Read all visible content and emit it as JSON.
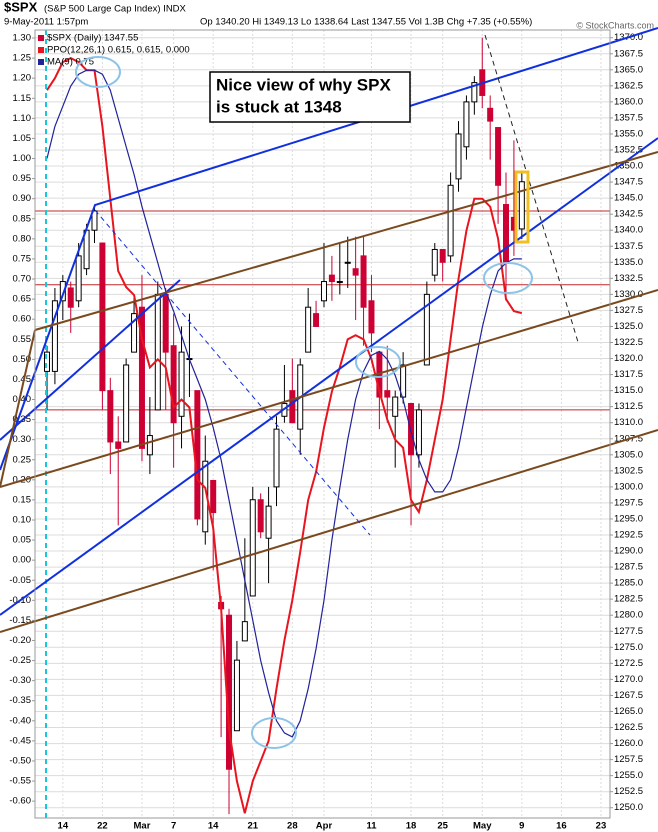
{
  "chart_data": {
    "type": "candlestick",
    "title": "$SPX",
    "subtitle": "(S&P 500 Large Cap Index) INDX",
    "date": "9-May-2011 1:57pm",
    "quote": "Op 1340.20  Hi 1349.13  Lo 1338.64  Last 1347.55  Vol 1.3B  Chg +7.35 (+0.55%)",
    "credit": "© StockCharts.com",
    "annotation": [
      "Nice view of why SPX",
      "is stuck at 1348"
    ],
    "categories": [
      null,
      null,
      "14",
      null,
      null,
      null,
      null,
      "22",
      null,
      null,
      null,
      null,
      "Mar",
      null,
      null,
      null,
      "7",
      null,
      null,
      null,
      null,
      "14",
      null,
      null,
      null,
      null,
      "21",
      null,
      null,
      null,
      null,
      "28",
      null,
      null,
      null,
      "Apr",
      null,
      null,
      null,
      null,
      null,
      "11",
      null,
      null,
      null,
      null,
      "18",
      null,
      null,
      null,
      "25",
      null,
      null,
      null,
      null,
      "May",
      null,
      null,
      null,
      null,
      "9",
      null,
      null,
      null,
      null,
      "16",
      null,
      null,
      null,
      null,
      "23"
    ],
    "candles": {
      "name": "$SPX (Daily) 1347.55",
      "up_color": "#000000",
      "down_color": "#cc0033",
      "open": [
        1318,
        1318,
        1329,
        1331,
        1329,
        1334,
        1340,
        1338,
        1315,
        1307,
        1307,
        1321,
        1328,
        1305,
        1312,
        1330,
        1322,
        1311,
        1320,
        1315,
        1293,
        1301,
        1282,
        1280,
        1262,
        1276,
        1283,
        1298,
        1292,
        1300,
        1311,
        1315,
        1309,
        1321,
        1327,
        1329,
        1333,
        1332,
        1335,
        1334,
        1336,
        1329,
        1321,
        1315,
        1311,
        1314,
        1313,
        1305,
        1319,
        1333,
        1337,
        1336,
        1348,
        1353,
        1360,
        1365,
        1359,
        1356,
        1344,
        1342,
        1340.2,
        null,
        null,
        null,
        null,
        null,
        null,
        null,
        null,
        null,
        null
      ],
      "high": [
        1322,
        1331,
        1333,
        1332,
        1338,
        1341,
        1344,
        1338,
        1317,
        1311,
        1320,
        1330,
        1333,
        1314,
        1332,
        1331,
        1327,
        1325,
        1327,
        1315,
        1308,
        1301,
        1283,
        1281,
        1276,
        1292,
        1300,
        1299,
        1300,
        1311,
        1319,
        1320,
        1320,
        1331,
        1329,
        1338,
        1336,
        1338,
        1339,
        1339,
        1339,
        1333,
        1321,
        1322,
        1315,
        1321,
        1313,
        1313,
        1332,
        1338,
        1337,
        1349,
        1357,
        1361,
        1364,
        1370,
        1361,
        1356,
        1349,
        1354,
        1349.13,
        null,
        null,
        null,
        null,
        null,
        null,
        null,
        null,
        null,
        null
      ],
      "low": [
        1312,
        1316,
        1326,
        1324,
        1328,
        1333,
        1338,
        1312,
        1302,
        1294,
        1307,
        1321,
        1304,
        1302,
        1312,
        1312,
        1303,
        1306,
        1314,
        1294,
        1291,
        1287,
        1261,
        1249,
        1262,
        1276,
        1283,
        1292,
        1285,
        1297,
        1310,
        1310,
        1305,
        1321,
        1325,
        1328,
        1329,
        1330,
        1331,
        1326,
        1322,
        1321,
        1309,
        1310,
        1303,
        1313,
        1294,
        1303,
        1319,
        1332,
        1332,
        1335,
        1346,
        1351,
        1358,
        1359,
        1351,
        1341,
        1329,
        1336,
        1338.64,
        null,
        null,
        null,
        null,
        null,
        null,
        null,
        null,
        null,
        null
      ],
      "close": [
        1321,
        1329,
        1332,
        1328,
        1336,
        1340,
        1343,
        1315,
        1307,
        1306,
        1319,
        1327,
        1306,
        1308,
        1330,
        1321,
        1310,
        1321,
        1320,
        1295,
        1304,
        1296,
        1281,
        1256,
        1273,
        1279,
        1298,
        1293,
        1297,
        1309,
        1313,
        1310,
        1319,
        1328,
        1325,
        1332,
        1332,
        1332,
        1335,
        1333,
        1328,
        1324,
        1314,
        1314,
        1314,
        1319,
        1305,
        1312,
        1330,
        1337,
        1335,
        1347,
        1355,
        1360,
        1363,
        1361,
        1357,
        1347,
        1335,
        1340,
        1347.55,
        null,
        null,
        null,
        null,
        null,
        null,
        null,
        null,
        null,
        null
      ]
    },
    "series": [
      {
        "name": "PPO(12,26,1) 0.615, 0.615, 0.000",
        "color": "#e8141e",
        "axis": "y2",
        "values": [
          1.17,
          1.2,
          1.24,
          1.25,
          1.24,
          1.22,
          1.22,
          1.08,
          0.9,
          0.72,
          0.68,
          0.66,
          0.55,
          0.48,
          0.5,
          0.48,
          0.38,
          0.4,
          0.38,
          0.2,
          0.18,
          0.08,
          -0.12,
          -0.42,
          -0.55,
          -0.63,
          -0.55,
          -0.5,
          -0.45,
          -0.32,
          -0.2,
          -0.1,
          0.02,
          0.15,
          0.22,
          0.33,
          0.42,
          0.48,
          0.55,
          0.56,
          0.55,
          0.5,
          0.42,
          0.35,
          0.3,
          0.28,
          0.15,
          0.12,
          0.2,
          0.3,
          0.4,
          0.55,
          0.7,
          0.82,
          0.9,
          0.9,
          0.88,
          0.8,
          0.65,
          0.62,
          0.615,
          null,
          null,
          null,
          null,
          null,
          null,
          null,
          null,
          null,
          null
        ]
      },
      {
        "name": "MA(9) 0.75",
        "color": "#22229a",
        "axis": "y2",
        "values": [
          1.0,
          1.08,
          1.13,
          1.18,
          1.21,
          1.22,
          1.22,
          1.21,
          1.17,
          1.1,
          1.03,
          0.96,
          0.88,
          0.81,
          0.74,
          0.67,
          0.62,
          0.56,
          0.5,
          0.45,
          0.4,
          0.33,
          0.25,
          0.15,
          0.05,
          -0.05,
          -0.15,
          -0.25,
          -0.33,
          -0.4,
          -0.43,
          -0.44,
          -0.4,
          -0.32,
          -0.22,
          -0.1,
          0.05,
          0.18,
          0.3,
          0.4,
          0.47,
          0.51,
          0.52,
          0.5,
          0.46,
          0.4,
          0.32,
          0.25,
          0.2,
          0.17,
          0.17,
          0.2,
          0.28,
          0.38,
          0.48,
          0.58,
          0.66,
          0.72,
          0.74,
          0.75,
          0.75,
          null,
          null,
          null,
          null,
          null,
          null,
          null,
          null,
          null,
          null
        ]
      }
    ],
    "hlines": {
      "values": [
        1343,
        1331.5,
        1312
      ],
      "color": "#c0282d"
    },
    "ylim": [
      1248.4,
      1371.2
    ],
    "yticks": [
      {
        "value": 1250,
        "label": "1250.0"
      },
      1252.5,
      {
        "value": 1255,
        "label": "1255.0"
      },
      1257.5,
      {
        "value": 1260,
        "label": "1260.0"
      },
      1262.5,
      {
        "value": 1265,
        "label": "1265.0"
      },
      1267.5,
      {
        "value": 1270,
        "label": "1270.0"
      },
      1272.5,
      {
        "value": 1275,
        "label": "1275.0"
      },
      1277.5,
      {
        "value": 1280,
        "label": "1280.0"
      },
      1282.5,
      {
        "value": 1285,
        "label": "1285.0"
      },
      1287.5,
      {
        "value": 1290,
        "label": "1290.0"
      },
      1292.5,
      {
        "value": 1295,
        "label": "1295.0"
      },
      1297.5,
      {
        "value": 1300,
        "label": "1300.0"
      },
      1302.5,
      {
        "value": 1305,
        "label": "1305.0"
      },
      1307.5,
      {
        "value": 1310,
        "label": "1310.0"
      },
      1312.5,
      {
        "value": 1315,
        "label": "1315.0"
      },
      1317.5,
      {
        "value": 1320,
        "label": "1320.0"
      },
      1322.5,
      {
        "value": 1325,
        "label": "1325.0"
      },
      1327.5,
      {
        "value": 1330,
        "label": "1330.0"
      },
      1332.5,
      {
        "value": 1335,
        "label": "1335.0"
      },
      1337.5,
      {
        "value": 1340,
        "label": "1340.0"
      },
      1342.5,
      {
        "value": 1345,
        "label": "1345.0"
      },
      1347.5,
      {
        "value": 1350,
        "label": "1350.0"
      },
      1352.5,
      {
        "value": 1355,
        "label": "1355.0"
      },
      1357.5,
      {
        "value": 1360,
        "label": "1360.0"
      },
      1362.5,
      {
        "value": 1365,
        "label": "1365.0"
      },
      1367.5,
      {
        "value": 1370,
        "label": "1370.0"
      }
    ],
    "y2lim": [
      -0.642,
      1.32
    ],
    "y2ticks": [
      {
        "value": 1.3,
        "label": "1.30"
      },
      1.25,
      {
        "value": 1.2,
        "label": "1.20"
      },
      1.15,
      {
        "value": 1.1,
        "label": "1.10"
      },
      1.05,
      {
        "value": 1,
        "label": "1.00"
      },
      0.95,
      {
        "value": 0.9,
        "label": "0.90"
      },
      0.85,
      {
        "value": 0.8,
        "label": "0.80"
      },
      0.75,
      {
        "value": 0.7,
        "label": "0.70"
      },
      0.65,
      {
        "value": 0.6,
        "label": "0.60"
      },
      0.55,
      {
        "value": 0.5,
        "label": "0.50"
      },
      0.45,
      {
        "value": 0.4,
        "label": "0.40"
      },
      0.35,
      {
        "value": 0.3,
        "label": "0.30"
      },
      0.25,
      {
        "value": 0.2,
        "label": "0.20"
      },
      0.15,
      {
        "value": 0.1,
        "label": "0.10"
      },
      0.05,
      {
        "value": 0,
        "label": "0.00"
      },
      -0.05,
      {
        "value": -0.1,
        "label": "-0.10"
      },
      -0.15,
      {
        "value": -0.2,
        "label": "-0.20"
      },
      -0.25,
      {
        "value": -0.3,
        "label": "-0.30"
      },
      -0.35,
      {
        "value": -0.4,
        "label": "-0.40"
      },
      -0.45,
      {
        "value": -0.5,
        "label": "-0.50"
      },
      -0.55,
      {
        "value": -0.6,
        "label": "-0.60"
      }
    ],
    "grid": true
  }
}
